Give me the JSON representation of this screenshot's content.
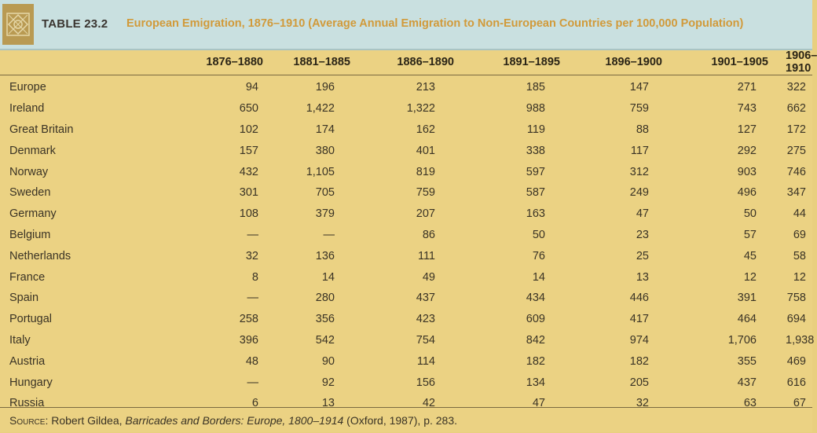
{
  "header": {
    "table_number": "TABLE 23.2",
    "title": "European Emigration, 1876–1910 (Average Annual Emigration to Non-European Countries per 100,000 Population)"
  },
  "columns": [
    "1876–1880",
    "1881–1885",
    "1886–1890",
    "1891–1895",
    "1896–1900",
    "1901–1905",
    "1906–1910"
  ],
  "rows": [
    {
      "country": "Europe",
      "values": [
        "94",
        "196",
        "213",
        "185",
        "147",
        "271",
        "322"
      ]
    },
    {
      "country": "Ireland",
      "values": [
        "650",
        "1,422",
        "1,322",
        "988",
        "759",
        "743",
        "662"
      ]
    },
    {
      "country": "Great Britain",
      "values": [
        "102",
        "174",
        "162",
        "119",
        "88",
        "127",
        "172"
      ]
    },
    {
      "country": "Denmark",
      "values": [
        "157",
        "380",
        "401",
        "338",
        "117",
        "292",
        "275"
      ]
    },
    {
      "country": "Norway",
      "values": [
        "432",
        "1,105",
        "819",
        "597",
        "312",
        "903",
        "746"
      ]
    },
    {
      "country": "Sweden",
      "values": [
        "301",
        "705",
        "759",
        "587",
        "249",
        "496",
        "347"
      ]
    },
    {
      "country": "Germany",
      "values": [
        "108",
        "379",
        "207",
        "163",
        "47",
        "50",
        "44"
      ]
    },
    {
      "country": "Belgium",
      "values": [
        "—",
        "—",
        "86",
        "50",
        "23",
        "57",
        "69"
      ]
    },
    {
      "country": "Netherlands",
      "values": [
        "32",
        "136",
        "111",
        "76",
        "25",
        "45",
        "58"
      ]
    },
    {
      "country": "France",
      "values": [
        "8",
        "14",
        "49",
        "14",
        "13",
        "12",
        "12"
      ]
    },
    {
      "country": "Spain",
      "values": [
        "—",
        "280",
        "437",
        "434",
        "446",
        "391",
        "758"
      ]
    },
    {
      "country": "Portugal",
      "values": [
        "258",
        "356",
        "423",
        "609",
        "417",
        "464",
        "694"
      ]
    },
    {
      "country": "Italy",
      "values": [
        "396",
        "542",
        "754",
        "842",
        "974",
        "1,706",
        "1,938"
      ]
    },
    {
      "country": "Austria",
      "values": [
        "48",
        "90",
        "114",
        "182",
        "182",
        "355",
        "469"
      ]
    },
    {
      "country": "Hungary",
      "values": [
        "—",
        "92",
        "156",
        "134",
        "205",
        "437",
        "616"
      ]
    },
    {
      "country": "Russia",
      "values": [
        "6",
        "13",
        "42",
        "47",
        "32",
        "63",
        "67"
      ]
    }
  ],
  "source": {
    "label": "Source:",
    "author": " Robert Gildea, ",
    "book": "Barricades and Borders: Europe, 1800–1914",
    "details": " (Oxford, 1987), p. 283."
  },
  "colors": {
    "header_bg": "#c9e0e0",
    "title_text": "#d19a3a",
    "table_bg": "#ebd283"
  }
}
